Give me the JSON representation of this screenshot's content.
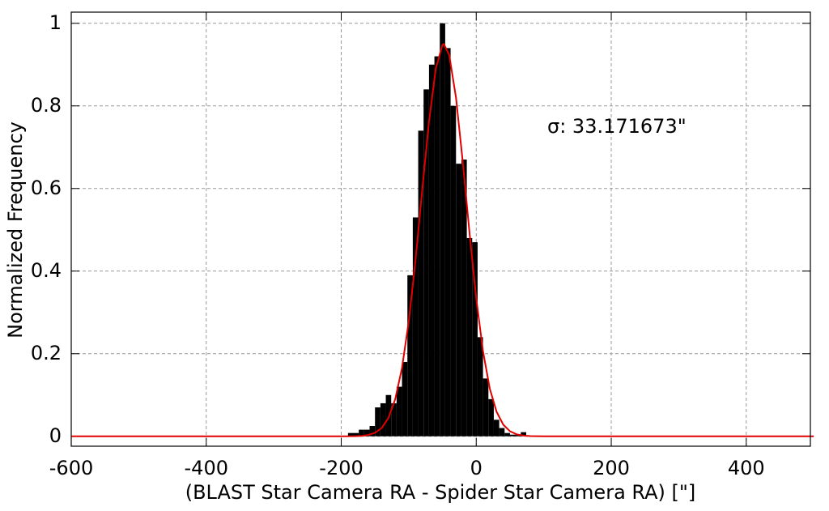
{
  "chart_data": {
    "type": "histogram",
    "xlabel": "(BLAST Star Camera RA - Spider Star Camera RA) [\"]",
    "ylabel": "Normalized Frequency",
    "annotation": "σ: 33.171673\"",
    "bins": [
      -190,
      -182,
      -174,
      -166,
      -158,
      -150,
      -142,
      -134,
      -126,
      -118,
      -110,
      -102,
      -94,
      -86,
      -78,
      -70,
      -62,
      -54,
      -46,
      -38,
      -30,
      -22,
      -14,
      -6,
      2,
      10,
      18,
      26,
      34,
      42,
      50,
      58,
      66,
      74,
      82
    ],
    "values": [
      0.008,
      0.008,
      0.016,
      0.016,
      0.025,
      0.07,
      0.08,
      0.1,
      0.08,
      0.12,
      0.18,
      0.39,
      0.53,
      0.74,
      0.84,
      0.9,
      0.92,
      1.0,
      0.94,
      0.8,
      0.66,
      0.67,
      0.48,
      0.47,
      0.24,
      0.14,
      0.09,
      0.04,
      0.02,
      0.008,
      0.004,
      0.004,
      0.01,
      0
    ],
    "color": "#000000",
    "overlay": {
      "type": "line",
      "color": "#e00000",
      "x": [
        -600,
        -500,
        -400,
        -300,
        -200,
        -180,
        -170,
        -160,
        -150,
        -140,
        -130,
        -120,
        -110,
        -100,
        -90,
        -80,
        -70,
        -60,
        -50,
        -48,
        -40,
        -30,
        -20,
        -10,
        0,
        10,
        20,
        30,
        40,
        50,
        60,
        70,
        80,
        100,
        200,
        300,
        400,
        500
      ],
      "values": [
        0,
        0,
        0,
        0,
        0,
        0.0003,
        0.0011,
        0.0032,
        0.0084,
        0.0203,
        0.0447,
        0.0901,
        0.1656,
        0.278,
        0.426,
        0.597,
        0.762,
        0.89,
        0.948,
        0.95,
        0.923,
        0.82,
        0.665,
        0.493,
        0.334,
        0.206,
        0.116,
        0.0599,
        0.0282,
        0.0121,
        0.0047,
        0.0017,
        0.0006,
        0,
        0,
        0,
        0,
        0
      ]
    },
    "xlim": [
      -600,
      495
    ],
    "ylim": [
      -0.024,
      1.027
    ],
    "xticks": [
      -600,
      -400,
      -200,
      0,
      200,
      400
    ],
    "yticks": [
      0,
      0.2,
      0.4,
      0.6,
      0.8,
      1
    ],
    "grid": true
  }
}
